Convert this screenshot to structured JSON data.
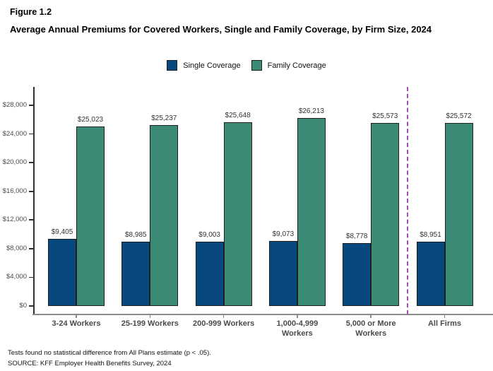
{
  "header": {
    "figure_label": "Figure 1.2",
    "title": "Average Annual Premiums for Covered Workers, Single and Family Coverage, by Firm Size, 2024"
  },
  "chart_data": {
    "type": "bar",
    "title": "Average Annual Premiums for Covered Workers, Single and Family Coverage, by Firm Size, 2024",
    "categories": [
      "3-24 Workers",
      "25-199 Workers",
      "200-999 Workers",
      "1,000-4,999 Workers",
      "5,000 or More Workers",
      "All Firms"
    ],
    "series": [
      {
        "name": "Single Coverage",
        "color": "#07487E",
        "values": [
          9405,
          8985,
          9003,
          9073,
          8778,
          8951
        ],
        "value_labels": [
          "$9,405",
          "$8,985",
          "$9,003",
          "$9,073",
          "$8,778",
          "$8,951"
        ]
      },
      {
        "name": "Family Coverage",
        "color": "#3A8A75",
        "values": [
          25023,
          25237,
          25648,
          26213,
          25573,
          25572
        ],
        "value_labels": [
          "$25,023",
          "$25,237",
          "$25,648",
          "$26,213",
          "$25,573",
          "$25,572"
        ]
      }
    ],
    "xlabel": "",
    "ylabel": "",
    "ylim": [
      0,
      28000
    ],
    "yticks": [
      0,
      4000,
      8000,
      12000,
      16000,
      20000,
      24000,
      28000
    ],
    "ytick_labels": [
      "$0",
      "$4,000",
      "$8,000",
      "$12,000",
      "$16,000",
      "$20,000",
      "$24,000",
      "$28,000"
    ],
    "grid": false,
    "legend_position": "top",
    "separator": {
      "between": [
        "5,000 or More Workers",
        "All Firms"
      ],
      "style": "dashed",
      "color": "#A04FB5"
    }
  },
  "footer": {
    "note": "Tests found no statistical difference from All Plans estimate (p < .05).",
    "source": "SOURCE: KFF Employer Health Benefits Survey, 2024"
  }
}
